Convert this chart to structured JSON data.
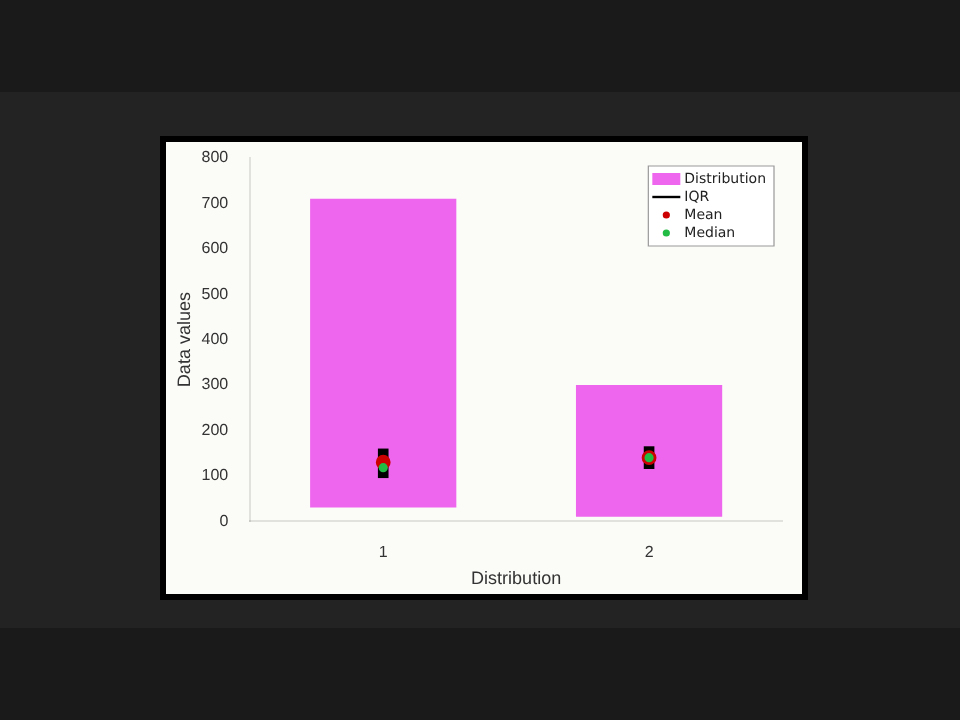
{
  "chart_data": {
    "type": "bar",
    "xlabel": "Distribution",
    "ylabel": "Data values",
    "categories": [
      "1",
      "2"
    ],
    "ylim": [
      0,
      800
    ],
    "yticks": [
      0,
      100,
      200,
      300,
      400,
      500,
      600,
      700,
      800
    ],
    "legend": "top right",
    "grid": false,
    "series": [
      {
        "name": "Distribution",
        "color": "#ee66ee",
        "base": [
          30,
          10
        ],
        "values": [
          680,
          290
        ]
      },
      {
        "name": "IQR",
        "color": "#000000",
        "base": [
          95,
          115
        ],
        "values": [
          65,
          50
        ]
      },
      {
        "name": "Mean",
        "type": "scatter",
        "color": "#cc0000",
        "x": [
          "1",
          "2"
        ],
        "values": [
          130,
          140
        ]
      },
      {
        "name": "Median",
        "type": "scatter",
        "color": "#22bb44",
        "x": [
          "1",
          "2"
        ],
        "values": [
          118,
          140
        ]
      }
    ]
  }
}
